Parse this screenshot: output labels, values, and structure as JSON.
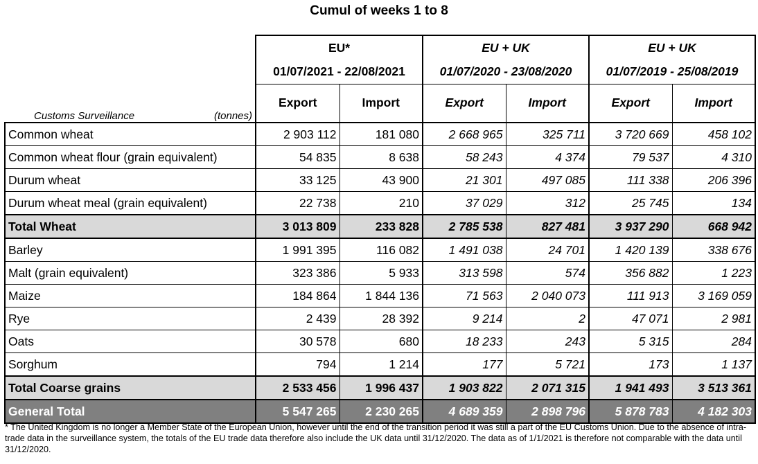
{
  "title": "Cumul of weeks 1 to 8",
  "header": {
    "caption": "Customs Surveillance",
    "unit": "(tonnes)",
    "groups": [
      {
        "name": "EU*",
        "period": "01/07/2021 - 22/08/2021",
        "export": "Export",
        "import": "Import"
      },
      {
        "name": "EU + UK",
        "period": "01/07/2020 - 23/08/2020",
        "export": "Export",
        "import": "Import"
      },
      {
        "name": "EU + UK",
        "period": "01/07/2019 - 25/08/2019",
        "export": "Export",
        "import": "Import"
      }
    ]
  },
  "rows": [
    {
      "label": "Common wheat",
      "v": [
        "2 903 112",
        "181 080",
        "2 668 965",
        "325 711",
        "3 720 669",
        "458 102"
      ]
    },
    {
      "label": "Common wheat flour (grain equivalent)",
      "v": [
        "54 835",
        "8 638",
        "58 243",
        "4 374",
        "79 537",
        "4 310"
      ]
    },
    {
      "label": "Durum wheat",
      "v": [
        "33 125",
        "43 900",
        "21 301",
        "497 085",
        "111 338",
        "206 396"
      ]
    },
    {
      "label": "Durum wheat meal (grain equivalent)",
      "v": [
        "22 738",
        "210",
        "37 029",
        "312",
        "25 745",
        "134"
      ]
    },
    {
      "label": "Total Wheat",
      "v": [
        "3 013 809",
        "233 828",
        "2 785 538",
        "827 481",
        "3 937 290",
        "668 942"
      ]
    },
    {
      "label": "Barley",
      "v": [
        "1 991 395",
        "116 082",
        "1 491 038",
        "24 701",
        "1 420 139",
        "338 676"
      ]
    },
    {
      "label": "Malt (grain equivalent)",
      "v": [
        "323 386",
        "5 933",
        "313 598",
        "574",
        "356 882",
        "1 223"
      ]
    },
    {
      "label": "Maize",
      "v": [
        "184 864",
        "1 844 136",
        "71 563",
        "2 040 073",
        "111 913",
        "3 169 059"
      ]
    },
    {
      "label": "Rye",
      "v": [
        "2 439",
        "28 392",
        "9 214",
        "2",
        "47 071",
        "2 981"
      ]
    },
    {
      "label": "Oats",
      "v": [
        "30 578",
        "680",
        "18 233",
        "243",
        "5 315",
        "284"
      ]
    },
    {
      "label": "Sorghum",
      "v": [
        "794",
        "1 214",
        "177",
        "5 721",
        "173",
        "1 137"
      ]
    },
    {
      "label": "Total Coarse grains",
      "v": [
        "2 533 456",
        "1 996 437",
        "1 903 822",
        "2 071 315",
        "1 941 493",
        "3 513 361"
      ]
    },
    {
      "label": "General Total",
      "v": [
        "5 547 265",
        "2 230 265",
        "4 689 359",
        "2 898 796",
        "5 878 783",
        "4 182 303"
      ]
    }
  ],
  "footnote": "* The United Kingdom is no longer a Member State of the European Union, however until the end of the transition period it was still a part of the EU Customs Union. Due to the absence of intra-trade data in the surveillance system, the totals of the EU trade data  therefore also include the UK data until 31/12/2020. The data as of 1/1/2021 is therefore not comparable with the data until 31/12/2020."
}
